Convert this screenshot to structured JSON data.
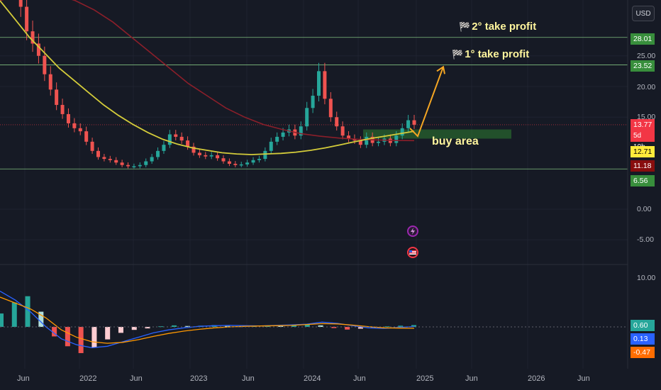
{
  "toolbar": {
    "currency_button": "USD"
  },
  "annotations": {
    "tp2": {
      "flag_icon": "checkered-flag-icon",
      "label": "2° take profit"
    },
    "tp1": {
      "flag_icon": "checkered-flag-icon",
      "label": "1° take profit"
    },
    "buy_area": "buy area"
  },
  "price_axis": {
    "ticks": [
      "25.00",
      "20.00",
      "15.00",
      "0.00",
      "-5.00"
    ],
    "badges": [
      {
        "value": "28.01",
        "color": "#388e3c"
      },
      {
        "value": "23.52",
        "color": "#388e3c"
      },
      {
        "value": "13.77",
        "color": "#f23645"
      },
      {
        "value": "5d 10h",
        "color": "#f23645"
      },
      {
        "value": "12.71",
        "color": "#ffeb3b"
      },
      {
        "value": "11.18",
        "color": "#880e0e"
      },
      {
        "value": "6.56",
        "color": "#388e3c"
      }
    ]
  },
  "macd_axis": {
    "ticks": [
      "10.00"
    ],
    "badges": [
      {
        "value": "0.60",
        "color": "#26a69a"
      },
      {
        "value": "0.13",
        "color": "#2962ff"
      },
      {
        "value": "-0.47",
        "color": "#ff6d00"
      }
    ]
  },
  "time_axis": [
    "Jun",
    "2022",
    "Jun",
    "2023",
    "Jun",
    "2024",
    "Jun",
    "2025",
    "Jun",
    "2026",
    "Jun"
  ],
  "events": [
    {
      "icon": "lightning-icon",
      "color": "#9c27b0"
    },
    {
      "icon": "us-flag-icon",
      "color": "#f23645"
    }
  ],
  "chart_data": {
    "type": "candlestick",
    "price_levels": {
      "tp2": 28.01,
      "tp1": 23.52,
      "last": 13.77,
      "ma_fast": 12.71,
      "ma_slow": 11.18,
      "support": 6.56
    },
    "buy_area_range": [
      11.5,
      13.0
    ],
    "price_series": [
      38,
      42,
      37,
      33,
      29,
      27,
      25,
      22,
      19.5,
      17,
      15.5,
      14,
      13.2,
      12.7,
      11,
      9.5,
      8.5,
      8.2,
      8.0,
      7.6,
      7.2,
      7.0,
      7.0,
      7.2,
      7.8,
      8.5,
      9.5,
      10.5,
      12.2,
      11.8,
      11.2,
      10.2,
      9.2,
      8.8,
      8.6,
      8.8,
      8.3,
      7.8,
      7.4,
      7.2,
      7.3,
      7.6,
      8.0,
      8.2,
      9.5,
      11.0,
      11.8,
      12.5,
      13.0,
      12.0,
      13.5,
      16.5,
      18.5,
      22.5,
      18.0,
      15.0,
      13.5,
      12.0,
      11.5,
      11.2,
      10.5,
      11.8,
      10.8,
      11.0,
      11.5,
      10.8,
      12.0,
      13.2,
      14.5,
      13.77
    ],
    "ma_fast": [
      34,
      31,
      28,
      25.5,
      23,
      21,
      19,
      17,
      15.3,
      13.8,
      12.5,
      11.4,
      10.6,
      10.0,
      9.6,
      9.2,
      9.0,
      8.9,
      9.0,
      9.1,
      9.3,
      9.6,
      10.0,
      10.5,
      11.0,
      11.5,
      11.9,
      12.3,
      12.7
    ],
    "ma_slow": [
      34,
      35,
      35.5,
      35,
      34,
      32.5,
      30.5,
      28,
      25.5,
      23,
      20.5,
      18.5,
      16.5,
      15,
      13.8,
      13,
      12.3,
      11.9,
      11.6,
      11.4,
      11.3,
      11.2,
      11.18
    ],
    "macd_hist": [
      4.5,
      8.2,
      10.3,
      5.1,
      -3.2,
      -6.5,
      -8.8,
      -7.0,
      -4.2,
      -2.0,
      -1.0,
      -0.5,
      0.2,
      0.5,
      0.3,
      0.4,
      0.6,
      0.3,
      0.2,
      0.4,
      0.5,
      0.3,
      0.6,
      0.8,
      0.5,
      -0.4,
      -0.9,
      -0.6,
      -0.3,
      0.2,
      0.4,
      0.6
    ],
    "macd_line": [
      12,
      9,
      5,
      0,
      -4,
      -6,
      -7,
      -6.5,
      -5,
      -3.5,
      -2,
      -1,
      -0.3,
      0.2,
      0.4,
      0.5,
      0.4,
      0.3,
      0.5,
      0.7,
      0.9,
      1.6,
      1.2,
      0.4,
      -0.3,
      -0.5,
      -0.2,
      0.13
    ],
    "signal_line": [
      10,
      8,
      6,
      3,
      -1,
      -3.5,
      -5,
      -5.5,
      -5.2,
      -4.3,
      -3.2,
      -2.2,
      -1.4,
      -0.8,
      -0.3,
      0.0,
      0.2,
      0.3,
      0.4,
      0.5,
      0.8,
      1.1,
      1.0,
      0.6,
      0.1,
      -0.3,
      -0.4,
      -0.47
    ],
    "x_labels": [
      "Jun",
      "2022",
      "Jun",
      "2023",
      "Jun",
      "2024",
      "Jun",
      "2025",
      "Jun",
      "2026",
      "Jun"
    ]
  }
}
